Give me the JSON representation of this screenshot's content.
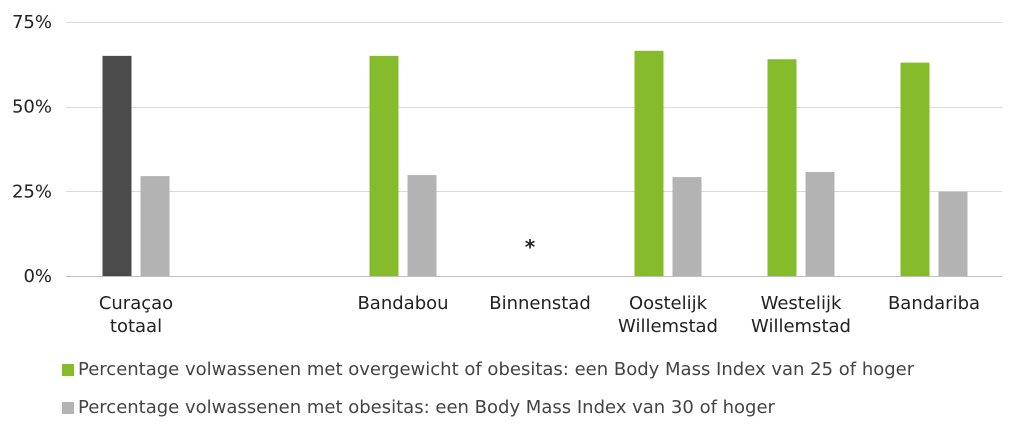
{
  "chart_data": {
    "type": "bar",
    "title": "",
    "xlabel": "",
    "ylabel": "",
    "ylim": [
      0,
      75
    ],
    "yticks": [
      "0%",
      "25%",
      "50%",
      "75%"
    ],
    "ytick_values": [
      0,
      25,
      50,
      75
    ],
    "grid": true,
    "legend_position": "bottom",
    "categories": [
      [
        "Curaçao",
        "totaal"
      ],
      [
        "Bandabou"
      ],
      [
        "Binnenstad"
      ],
      [
        "Oostelijk",
        "Willemstad"
      ],
      [
        "Westelijk",
        "Willemstad"
      ],
      [
        "Bandariba"
      ]
    ],
    "series": [
      {
        "name": "Percentage volwassenen met overgewicht of obesitas: een Body Mass Index van 25 of hoger",
        "color": "#86bc2b",
        "values": [
          65,
          65,
          null,
          66.5,
          64,
          63
        ]
      },
      {
        "name": "Percentage volwassenen met obesitas: een Body Mass Index van 30 of hoger",
        "color": "#b3b3b3",
        "values": [
          29.5,
          29.8,
          null,
          29.2,
          30.7,
          24.9
        ]
      }
    ],
    "highlight": {
      "category_index": 0,
      "series_index": 0,
      "color": "#4b4b4b"
    },
    "annotations": [
      {
        "category_index": 2,
        "text": "*"
      }
    ]
  }
}
